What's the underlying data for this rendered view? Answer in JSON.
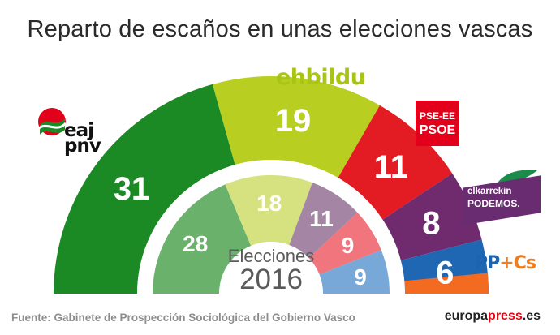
{
  "title": "Reparto de escaños en unas elecciones vascas",
  "center_label": {
    "line1": "Elecciones",
    "line2": "2016"
  },
  "source": "Fuente: Gabinete de Prospección Sociológica del Gobierno Vasco",
  "brand": {
    "part1": "europa",
    "part2": "press",
    "part3": ".es"
  },
  "logos": {
    "pnv": {
      "line1": "eaj",
      "line2": "pnv"
    },
    "ehbildu": "ehbildu",
    "psoe": {
      "line1": "PSE-EE",
      "line2": "PSOE"
    },
    "elkarrekin": {
      "line1": "elkarrekin",
      "line2": "PODEMOS."
    },
    "ppcs": {
      "pp": "PP",
      "plus": "+",
      "cs": "Cs"
    }
  },
  "chart_data": [
    {
      "type": "pie",
      "chart_style": "parliament-semicircle",
      "ring": "outer",
      "categories": [
        "EAJ-PNV",
        "EH Bildu",
        "PSE-EE PSOE",
        "Elkarrekin Podemos",
        "PP+Cs"
      ],
      "values": [
        31,
        19,
        11,
        8,
        6
      ],
      "labels": [
        "31",
        "19",
        "11",
        "8",
        "6"
      ],
      "colors": [
        "#1b8a25",
        "#b8cf22",
        "#e31b23",
        "#6f2b6e",
        "#1f66b3"
      ],
      "extra_colors": {
        "PP+Cs": "#f26b21"
      }
    },
    {
      "type": "pie",
      "chart_style": "parliament-semicircle",
      "ring": "inner",
      "categories": [
        "EAJ-PNV",
        "EH Bildu",
        "Elkarrekin Podemos",
        "PSE-EE PSOE",
        "PP"
      ],
      "values": [
        28,
        18,
        11,
        9,
        9
      ],
      "labels": [
        "28",
        "18",
        "11",
        "9",
        "9"
      ],
      "colors": [
        "#6ab26b",
        "#d5e27f",
        "#a585a4",
        "#f0757c",
        "#78a8d8"
      ]
    }
  ]
}
